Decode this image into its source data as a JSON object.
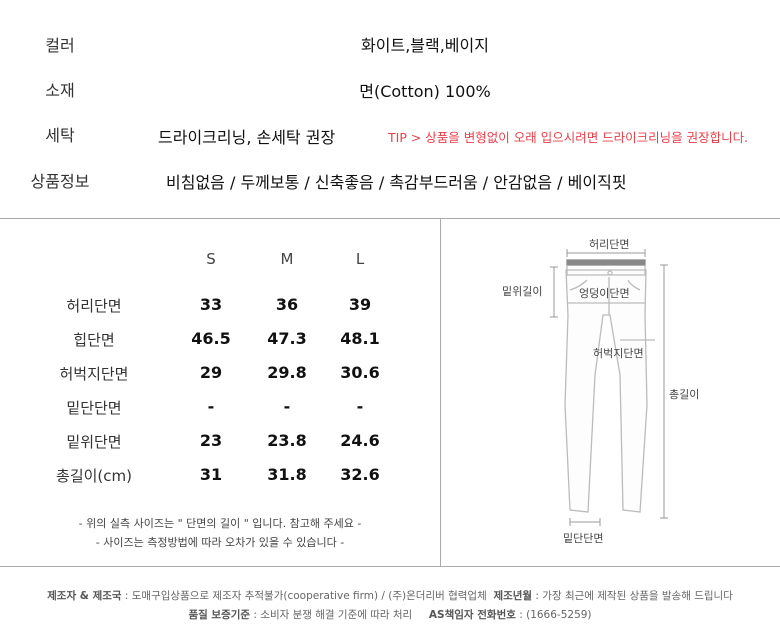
{
  "info": [
    {
      "label": "컬러",
      "value": "화이트,블랙,베이지"
    },
    {
      "label": "소재",
      "value": "면(Cotton) 100%"
    },
    {
      "label": "세탁",
      "value": "드라이크리닝, 손세탁 권장",
      "tip": "TIP > 상품을 변형없이 오래 입으시려면 드라이크리닝을 권장합니다."
    },
    {
      "label": "상품정보",
      "value": "비침없음 / 두께보통 / 신축좋음 / 촉감부드러움 / 안감없음 / 베이직핏"
    }
  ],
  "size_table": {
    "headers": [
      "S",
      "M",
      "L"
    ],
    "rows": [
      {
        "label": "허리단면",
        "values": [
          "33",
          "36",
          "39"
        ]
      },
      {
        "label": "힙단면",
        "values": [
          "46.5",
          "47.3",
          "48.1"
        ]
      },
      {
        "label": "허벅지단면",
        "values": [
          "29",
          "29.8",
          "30.6"
        ]
      },
      {
        "label": "밑단단면",
        "values": [
          "-",
          "-",
          "-"
        ]
      },
      {
        "label": "밑위단면",
        "values": [
          "23",
          "23.8",
          "24.6"
        ]
      },
      {
        "label": "총길이(cm)",
        "values": [
          "31",
          "31.8",
          "32.6"
        ]
      }
    ],
    "notes": [
      "- 위의 실측 사이즈는 \" 단면의 길이 \" 입니다. 참고해 주세요 -",
      "- 사이즈는 측정방법에 따라 오차가 있을 수 있습니다 -"
    ]
  },
  "diagram": {
    "waist": "허리단면",
    "rise": "밑위길이",
    "hip": "엉덩이단면",
    "thigh": "허벅지단면",
    "length": "총길이",
    "hem": "밑단단면"
  },
  "footer": {
    "l1_k1": "제조자 & 제조국",
    "l1_v1": " : 도매구입상품으로 제조자 추적불가(cooperative firm) / (주)온더리버 협력업체",
    "l1_k2": "제조년월",
    "l1_v2": " : 가장 최근에 제작된 상품을 발송해 드립니다",
    "l2_k1": "품질 보증기준",
    "l2_v1": " : 소비자 분쟁 해결 기준에 따라 처리",
    "l2_k2": "AS책임자 전화번호",
    "l2_v2": " : (1666-5259)"
  },
  "colors": {
    "tip": "#e8404a",
    "divider": "#aaaaaa"
  }
}
